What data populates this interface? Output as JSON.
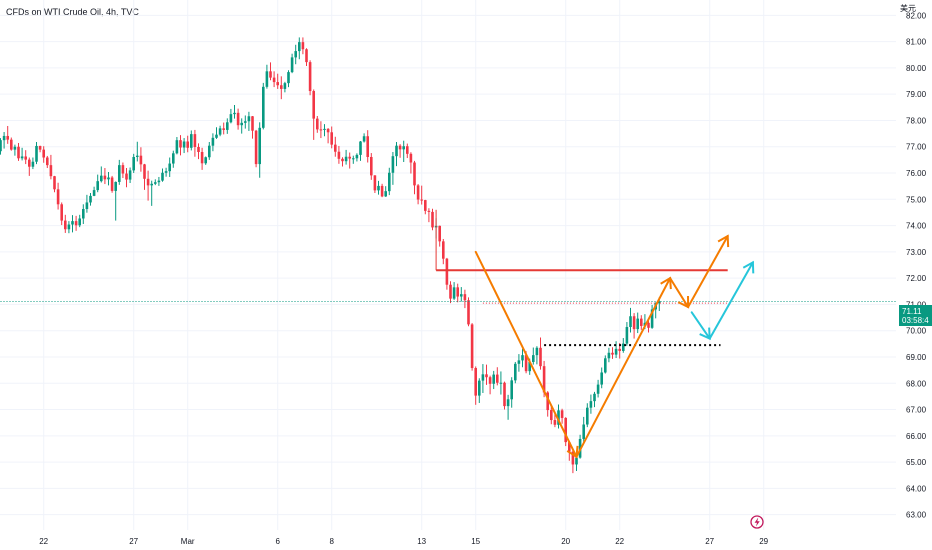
{
  "header": {
    "title": "CFDs on WTI Crude Oil, 4h, TVC"
  },
  "price_scale": {
    "currency": "美元"
  },
  "price_badge": {
    "price": "71.11",
    "countdown": "03:58:4"
  },
  "icons": {
    "lightning": "lightning-circle-icon"
  },
  "colors": {
    "up": "#089981",
    "down": "#f23645",
    "orange": "#f57c00",
    "cyan": "#26c6da",
    "red_line": "#e53935",
    "grid": "#f0f3fa"
  },
  "chart_data": {
    "type": "candlestick",
    "title": "CFDs on WTI Crude Oil, 4h, TVC",
    "y_ticks": [
      63.0,
      64.0,
      65.0,
      66.0,
      67.0,
      68.0,
      69.0,
      70.0,
      71.0,
      72.0,
      73.0,
      74.0,
      75.0,
      76.0,
      77.0,
      78.0,
      79.0,
      80.0,
      81.0,
      82.0
    ],
    "y_tick_labels": [
      "63.00",
      "64.00",
      "65.00",
      "66.00",
      "67.00",
      "68.00",
      "69.00",
      "70.00",
      "71.00",
      "72.00",
      "73.00",
      "74.00",
      "75.00",
      "76.00",
      "77.00",
      "78.00",
      "79.00",
      "80.00",
      "81.00",
      "82.00"
    ],
    "ylim": [
      62.6,
      82.5
    ],
    "x_tick_labels": [
      "22",
      "27",
      "Mar",
      "6",
      "8",
      "13",
      "15",
      "20",
      "22",
      "27",
      "29"
    ],
    "x_tick_bar_index": [
      12,
      37,
      52,
      77,
      92,
      117,
      132,
      157,
      172,
      197,
      212
    ],
    "bar_count": 232,
    "key_levels": [
      {
        "name": "resistance",
        "price": 72.3,
        "from_bar": 121,
        "to_bar": 202,
        "style": "solid",
        "color": "#e53935"
      },
      {
        "name": "support",
        "price": 69.45,
        "from_bar": 151,
        "to_bar": 200,
        "style": "dotted",
        "color": "#000000"
      },
      {
        "name": "last_price",
        "price": 71.11,
        "from_bar": 0,
        "to_bar": 232,
        "style": "dotted",
        "color": "#089981"
      }
    ],
    "drawings": [
      {
        "name": "orange-path",
        "color": "#f57c00",
        "points": [
          [
            132,
            73.0
          ],
          [
            160,
            65.2
          ],
          [
            186,
            72.0
          ],
          [
            191,
            70.9
          ],
          [
            202,
            73.6
          ]
        ]
      },
      {
        "name": "cyan-path",
        "color": "#26c6da",
        "points": [
          [
            192,
            70.7
          ],
          [
            197,
            69.7
          ],
          [
            209,
            72.6
          ]
        ]
      }
    ],
    "ohlc": [
      [
        76.83,
        77.33,
        76.7,
        77.25
      ],
      [
        77.25,
        77.56,
        76.93,
        77.41
      ],
      [
        77.41,
        77.79,
        77.11,
        77.27
      ],
      [
        77.27,
        77.35,
        76.85,
        76.89
      ],
      [
        76.89,
        77.08,
        76.66,
        77.0
      ],
      [
        77.0,
        77.14,
        76.46,
        76.56
      ],
      [
        76.56,
        76.96,
        76.48,
        76.63
      ],
      [
        76.63,
        76.87,
        76.34,
        76.51
      ],
      [
        76.51,
        76.59,
        75.89,
        76.24
      ],
      [
        76.24,
        76.59,
        76.15,
        76.43
      ],
      [
        76.43,
        77.18,
        76.34,
        77.03
      ],
      [
        77.03,
        77.04,
        76.79,
        76.89
      ],
      [
        76.89,
        77.02,
        76.39,
        76.59
      ],
      [
        76.59,
        76.65,
        76.19,
        76.3
      ],
      [
        76.3,
        76.69,
        75.76,
        75.88
      ],
      [
        75.88,
        75.89,
        75.27,
        75.38
      ],
      [
        75.38,
        75.63,
        74.61,
        74.81
      ],
      [
        74.81,
        74.88,
        74.02,
        74.19
      ],
      [
        74.19,
        74.41,
        73.72,
        73.86
      ],
      [
        73.86,
        74.17,
        73.71,
        74.04
      ],
      [
        74.04,
        74.4,
        73.74,
        74.17
      ],
      [
        74.17,
        74.37,
        73.8,
        74.01
      ],
      [
        74.01,
        74.41,
        73.94,
        74.27
      ],
      [
        74.27,
        74.81,
        74.06,
        74.63
      ],
      [
        74.63,
        75.17,
        74.49,
        74.88
      ],
      [
        74.88,
        75.24,
        74.76,
        75.13
      ],
      [
        75.13,
        75.48,
        75.12,
        75.35
      ],
      [
        75.35,
        75.94,
        75.27,
        75.69
      ],
      [
        75.69,
        76.25,
        75.64,
        75.9
      ],
      [
        75.9,
        76.19,
        75.58,
        75.76
      ],
      [
        75.76,
        76.04,
        75.53,
        75.83
      ],
      [
        75.83,
        75.89,
        75.25,
        75.32
      ],
      [
        75.32,
        75.68,
        74.19,
        75.66
      ],
      [
        75.66,
        76.5,
        75.55,
        76.3
      ],
      [
        76.3,
        76.4,
        75.81,
        75.98
      ],
      [
        75.98,
        76.19,
        75.46,
        75.75
      ],
      [
        75.75,
        76.21,
        75.62,
        76.1
      ],
      [
        76.1,
        76.73,
        76.0,
        76.61
      ],
      [
        76.61,
        77.19,
        76.44,
        76.66
      ],
      [
        76.66,
        76.98,
        76.05,
        76.33
      ],
      [
        76.33,
        76.35,
        75.36,
        75.78
      ],
      [
        75.78,
        76.09,
        74.95,
        75.53
      ],
      [
        75.53,
        75.71,
        74.75,
        75.59
      ],
      [
        75.59,
        75.76,
        75.54,
        75.65
      ],
      [
        75.65,
        75.85,
        75.51,
        75.71
      ],
      [
        75.71,
        76.17,
        75.67,
        76.01
      ],
      [
        76.01,
        76.2,
        75.86,
        76.07
      ],
      [
        76.07,
        76.59,
        75.85,
        76.36
      ],
      [
        76.36,
        76.85,
        76.2,
        76.75
      ],
      [
        76.75,
        77.37,
        76.71,
        77.25
      ],
      [
        77.25,
        77.44,
        76.67,
        76.97
      ],
      [
        76.97,
        77.33,
        76.76,
        77.2
      ],
      [
        77.2,
        77.42,
        76.79,
        76.96
      ],
      [
        76.96,
        77.62,
        76.86,
        77.48
      ],
      [
        77.48,
        77.64,
        76.62,
        76.99
      ],
      [
        76.99,
        77.13,
        76.53,
        76.8
      ],
      [
        76.8,
        76.96,
        76.12,
        76.37
      ],
      [
        76.37,
        76.63,
        76.31,
        76.6
      ],
      [
        76.6,
        77.18,
        76.5,
        77.04
      ],
      [
        77.04,
        77.51,
        76.83,
        77.34
      ],
      [
        77.34,
        77.74,
        77.3,
        77.46
      ],
      [
        77.46,
        77.8,
        77.4,
        77.7
      ],
      [
        77.7,
        77.92,
        77.47,
        77.64
      ],
      [
        77.64,
        78.08,
        77.49,
        77.93
      ],
      [
        77.93,
        78.44,
        77.89,
        78.24
      ],
      [
        78.24,
        78.59,
        78.07,
        78.29
      ],
      [
        78.29,
        78.45,
        77.65,
        77.82
      ],
      [
        77.82,
        78.08,
        77.5,
        77.91
      ],
      [
        77.91,
        78.19,
        77.69,
        77.97
      ],
      [
        77.97,
        78.33,
        77.6,
        78.16
      ],
      [
        78.16,
        78.17,
        77.31,
        77.61
      ],
      [
        77.61,
        77.64,
        76.22,
        76.34
      ],
      [
        76.34,
        77.93,
        75.82,
        77.72
      ],
      [
        77.72,
        79.43,
        77.66,
        79.28
      ],
      [
        79.28,
        80.12,
        79.21,
        79.87
      ],
      [
        79.87,
        80.21,
        79.53,
        79.63
      ],
      [
        79.63,
        79.87,
        79.27,
        79.46
      ],
      [
        79.46,
        79.78,
        79.2,
        79.34
      ],
      [
        79.34,
        79.68,
        78.81,
        79.2
      ],
      [
        79.2,
        79.47,
        79.07,
        79.42
      ],
      [
        79.42,
        79.91,
        79.27,
        79.84
      ],
      [
        79.84,
        80.54,
        79.8,
        80.4
      ],
      [
        80.4,
        80.88,
        80.14,
        80.64
      ],
      [
        80.64,
        81.16,
        80.33,
        80.98
      ],
      [
        80.98,
        81.16,
        80.52,
        80.71
      ],
      [
        80.71,
        80.75,
        80.07,
        80.22
      ],
      [
        80.22,
        80.29,
        78.96,
        79.12
      ],
      [
        79.12,
        79.18,
        77.26,
        78.07
      ],
      [
        78.07,
        78.17,
        77.53,
        77.66
      ],
      [
        77.66,
        77.97,
        77.33,
        77.64
      ],
      [
        77.64,
        77.86,
        77.4,
        77.68
      ],
      [
        77.68,
        77.71,
        77.13,
        77.55
      ],
      [
        77.55,
        77.77,
        76.94,
        77.08
      ],
      [
        77.08,
        77.38,
        76.62,
        76.81
      ],
      [
        76.81,
        77.03,
        76.35,
        76.54
      ],
      [
        76.54,
        76.6,
        76.25,
        76.45
      ],
      [
        76.45,
        76.88,
        76.32,
        76.62
      ],
      [
        76.62,
        76.78,
        76.17,
        76.55
      ],
      [
        76.55,
        76.66,
        76.35,
        76.56
      ],
      [
        76.56,
        76.75,
        76.44,
        76.69
      ],
      [
        76.69,
        77.22,
        76.46,
        77.2
      ],
      [
        77.2,
        77.51,
        77.16,
        77.4
      ],
      [
        77.4,
        77.63,
        76.4,
        76.61
      ],
      [
        76.61,
        76.76,
        75.74,
        75.91
      ],
      [
        75.91,
        75.92,
        75.24,
        75.34
      ],
      [
        75.34,
        75.7,
        75.18,
        75.51
      ],
      [
        75.51,
        75.59,
        75.08,
        75.11
      ],
      [
        75.11,
        75.5,
        75.09,
        75.31
      ],
      [
        75.31,
        76.2,
        75.16,
        76.01
      ],
      [
        76.01,
        76.8,
        75.55,
        76.64
      ],
      [
        76.64,
        77.18,
        76.26,
        77.04
      ],
      [
        77.04,
        77.1,
        76.58,
        76.9
      ],
      [
        76.9,
        77.23,
        76.42,
        77.02
      ],
      [
        77.02,
        77.12,
        76.57,
        76.73
      ],
      [
        76.73,
        76.79,
        75.98,
        76.4
      ],
      [
        76.4,
        76.46,
        75.19,
        75.53
      ],
      [
        75.53,
        75.58,
        74.81,
        74.99
      ],
      [
        74.99,
        75.52,
        74.8,
        74.97
      ],
      [
        74.97,
        74.98,
        74.43,
        74.56
      ],
      [
        74.56,
        74.66,
        74.13,
        74.52
      ],
      [
        74.52,
        74.64,
        73.82,
        73.93
      ],
      [
        73.93,
        74.28,
        73.51,
        73.99
      ],
      [
        73.99,
        74.0,
        73.2,
        73.4
      ],
      [
        73.4,
        73.49,
        72.53,
        72.74
      ],
      [
        72.74,
        72.77,
        71.56,
        71.75
      ],
      [
        71.75,
        71.88,
        71.05,
        71.22
      ],
      [
        71.22,
        71.85,
        71.17,
        71.65
      ],
      [
        71.65,
        71.79,
        71.08,
        71.3
      ],
      [
        71.3,
        71.66,
        71.11,
        71.39
      ],
      [
        71.39,
        71.56,
        70.86,
        71.16
      ],
      [
        71.16,
        71.27,
        70.17,
        70.24
      ],
      [
        70.24,
        70.29,
        68.48,
        68.58
      ],
      [
        68.58,
        68.64,
        67.18,
        67.53
      ],
      [
        67.53,
        68.19,
        67.25,
        68.1
      ],
      [
        68.1,
        68.73,
        67.63,
        68.34
      ],
      [
        68.34,
        68.71,
        67.94,
        68.23
      ],
      [
        68.23,
        68.29,
        67.58,
        67.98
      ],
      [
        67.98,
        68.47,
        67.78,
        68.33
      ],
      [
        68.33,
        68.61,
        67.92,
        68.02
      ],
      [
        68.02,
        68.45,
        67.57,
        68.02
      ],
      [
        68.02,
        68.06,
        67.0,
        67.13
      ],
      [
        67.13,
        67.56,
        66.61,
        67.39
      ],
      [
        67.39,
        68.23,
        67.07,
        68.11
      ],
      [
        68.11,
        68.81,
        68.0,
        68.74
      ],
      [
        68.74,
        69.11,
        68.44,
        68.87
      ],
      [
        68.87,
        69.31,
        68.61,
        69.07
      ],
      [
        69.07,
        69.22,
        68.38,
        68.46
      ],
      [
        68.46,
        68.94,
        68.32,
        68.81
      ],
      [
        68.81,
        69.36,
        68.71,
        69.07
      ],
      [
        69.07,
        69.41,
        68.72,
        69.35
      ],
      [
        69.35,
        69.74,
        68.52,
        68.65
      ],
      [
        68.65,
        68.85,
        67.47,
        67.65
      ],
      [
        67.65,
        67.7,
        66.73,
        66.98
      ],
      [
        66.98,
        67.12,
        66.44,
        66.6
      ],
      [
        66.6,
        66.83,
        66.33,
        66.42
      ],
      [
        66.42,
        67.19,
        66.28,
        66.97
      ],
      [
        66.97,
        67.03,
        66.46,
        66.68
      ],
      [
        66.68,
        66.71,
        65.61,
        65.76
      ],
      [
        65.76,
        65.8,
        65.05,
        65.4
      ],
      [
        65.4,
        65.49,
        64.58,
        64.91
      ],
      [
        64.91,
        65.28,
        64.66,
        65.17
      ],
      [
        65.17,
        66.04,
        65.13,
        65.88
      ],
      [
        65.88,
        66.72,
        65.73,
        66.43
      ],
      [
        66.43,
        67.24,
        66.33,
        67.07
      ],
      [
        67.07,
        67.57,
        66.84,
        67.32
      ],
      [
        67.32,
        67.67,
        67.09,
        67.6
      ],
      [
        67.6,
        68.13,
        67.46,
        67.95
      ],
      [
        67.95,
        68.6,
        67.81,
        68.41
      ],
      [
        68.41,
        69.06,
        68.37,
        68.95
      ],
      [
        68.95,
        69.35,
        68.8,
        69.16
      ],
      [
        69.16,
        69.37,
        68.93,
        69.09
      ],
      [
        69.09,
        69.6,
        68.96,
        69.31
      ],
      [
        69.31,
        69.53,
        68.94,
        69.23
      ],
      [
        69.23,
        69.72,
        69.16,
        69.51
      ],
      [
        69.51,
        70.33,
        69.43,
        70.14
      ],
      [
        70.14,
        70.87,
        69.93,
        70.55
      ],
      [
        70.55,
        70.67,
        69.7,
        70.06
      ],
      [
        70.06,
        70.69,
        69.91,
        70.46
      ],
      [
        70.46,
        70.59,
        70.03,
        70.18
      ],
      [
        70.18,
        70.63,
        70.06,
        70.3
      ],
      [
        70.3,
        70.39,
        69.93,
        70.11
      ],
      [
        70.11,
        70.98,
        70.07,
        70.81
      ],
      [
        70.81,
        71.08,
        70.47,
        71.04
      ],
      [
        71.04,
        71.27,
        70.75,
        71.11
      ]
    ]
  }
}
